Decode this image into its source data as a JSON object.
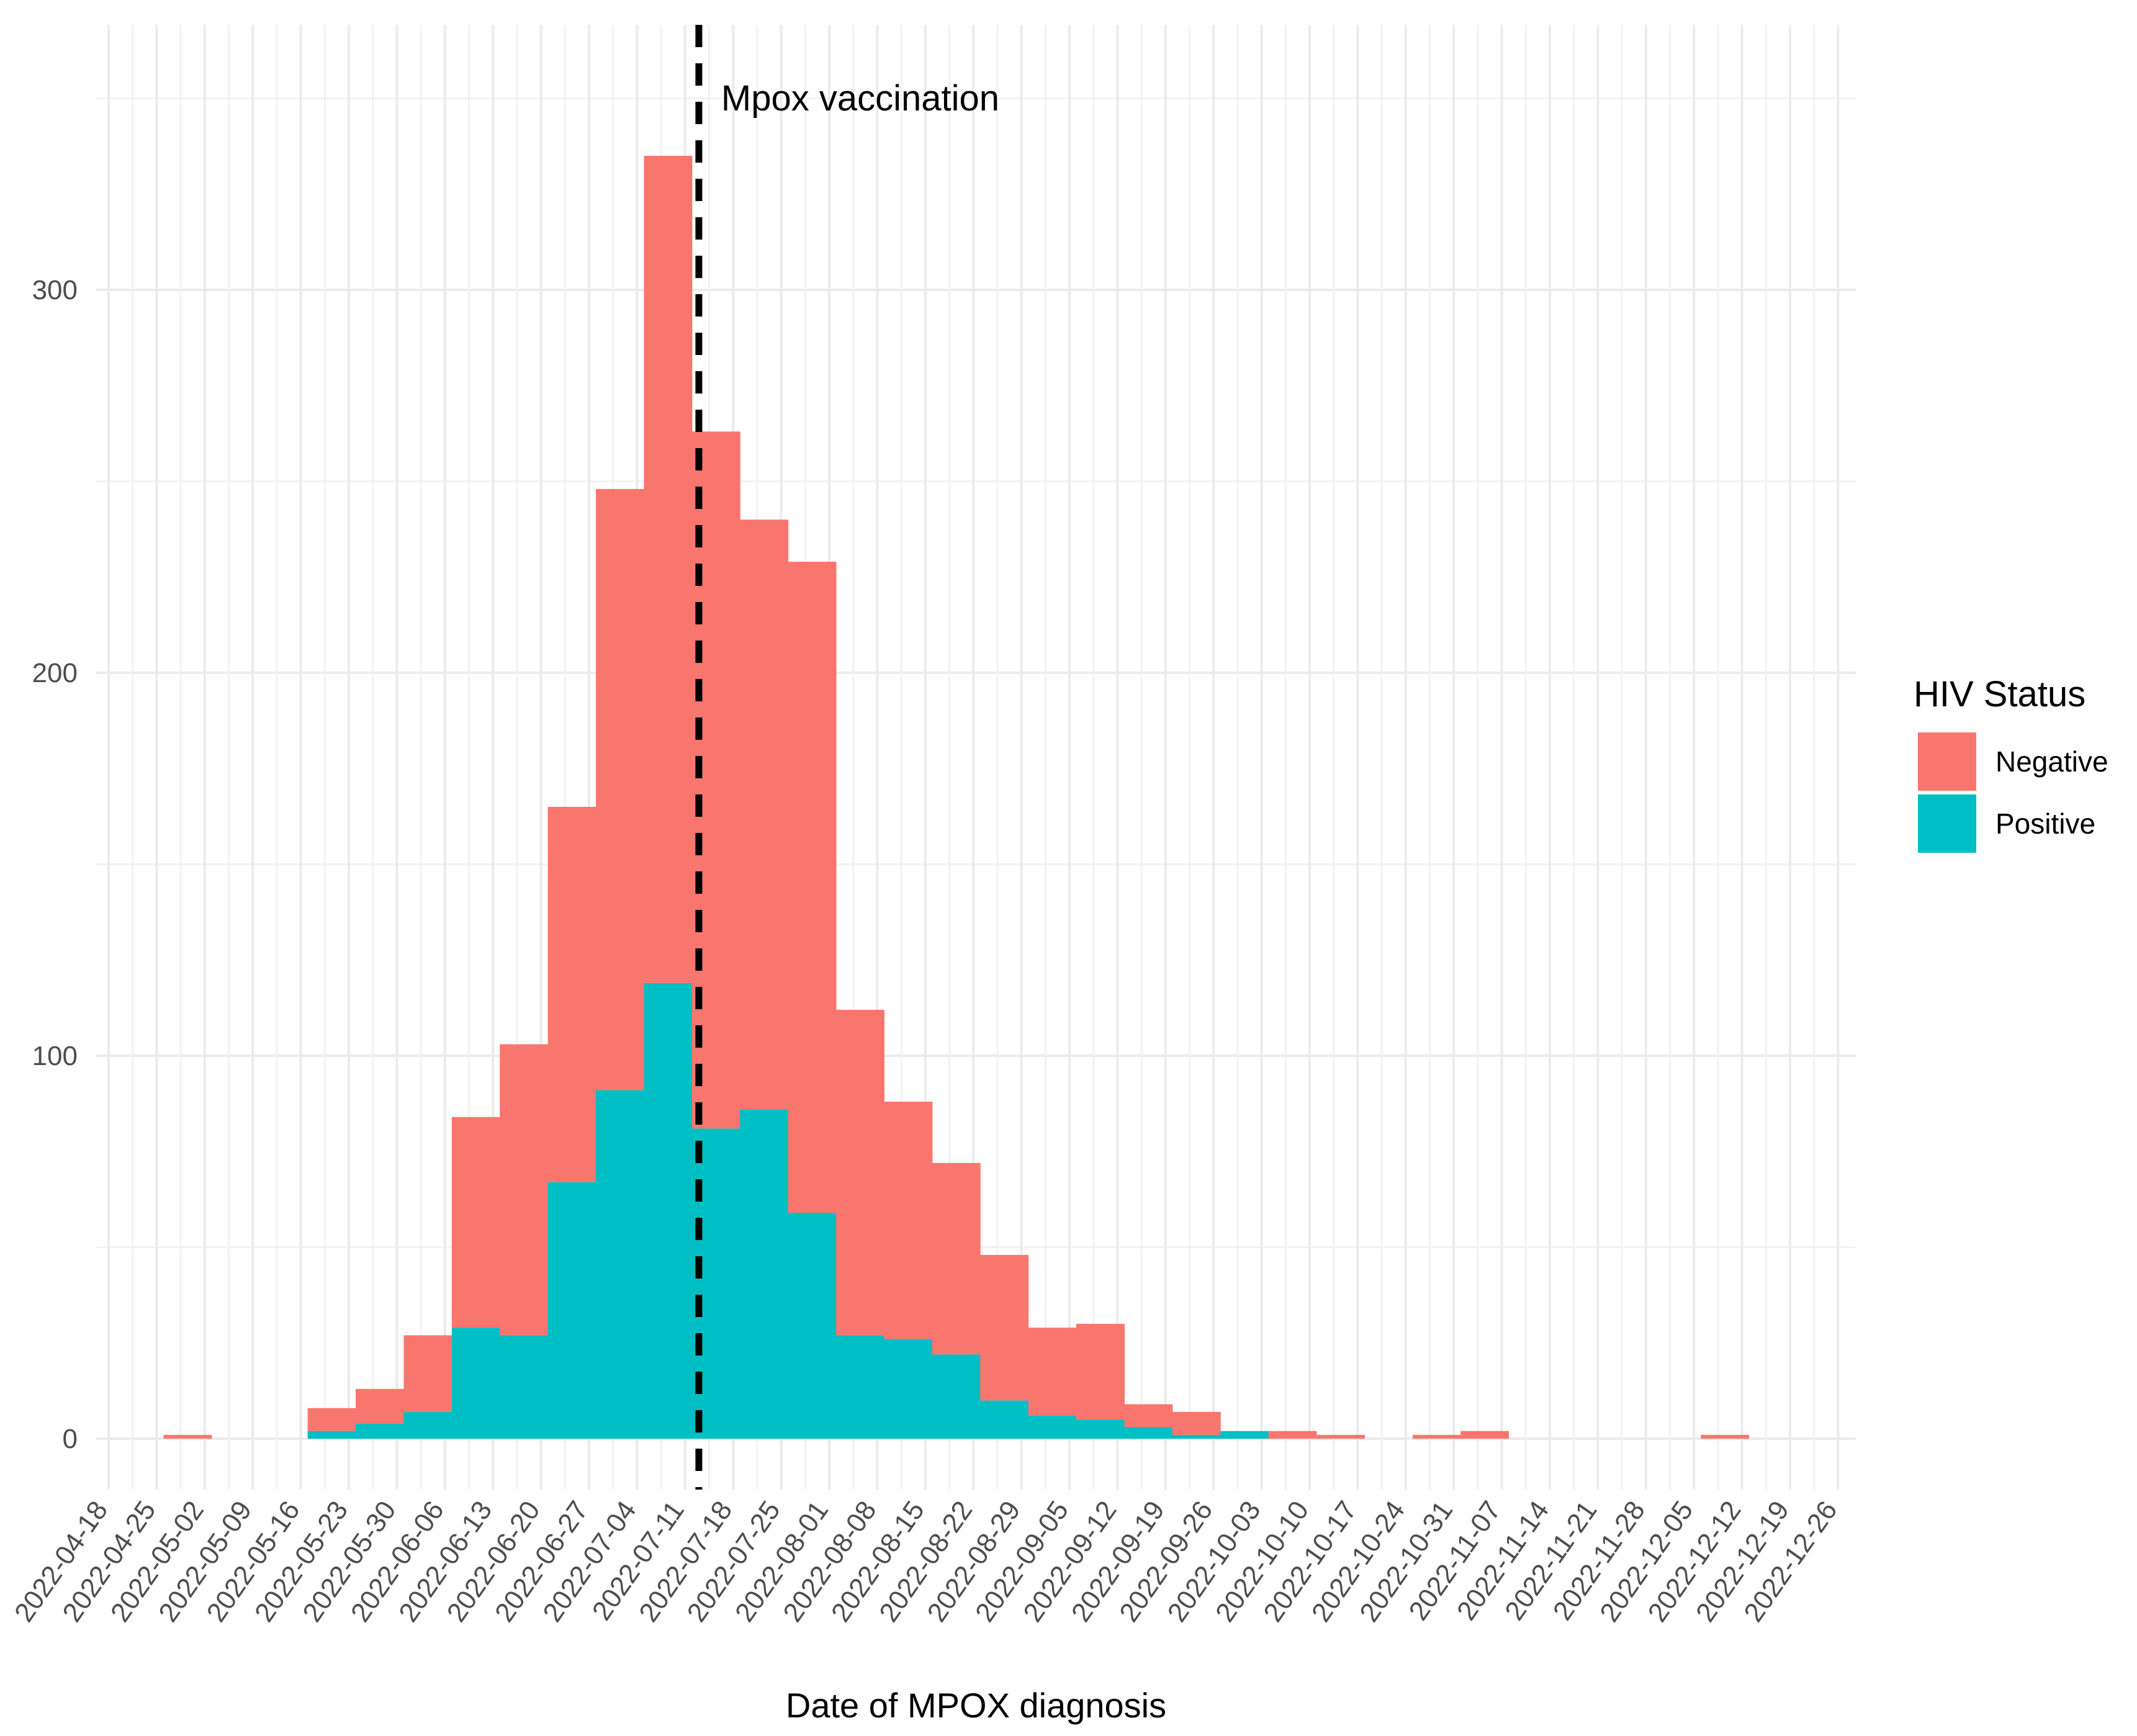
{
  "chart_data": {
    "type": "bar",
    "stacked": true,
    "xlabel": "Date of MPOX diagnosis",
    "ylabel": "",
    "ylim": [
      -17,
      370
    ],
    "yticks": [
      0,
      100,
      200,
      300
    ],
    "categories": [
      "2022-04-18",
      "2022-04-25",
      "2022-05-02",
      "2022-05-09",
      "2022-05-16",
      "2022-05-23",
      "2022-05-30",
      "2022-06-06",
      "2022-06-13",
      "2022-06-20",
      "2022-06-27",
      "2022-07-04",
      "2022-07-11",
      "2022-07-18",
      "2022-07-25",
      "2022-08-01",
      "2022-08-08",
      "2022-08-15",
      "2022-08-22",
      "2022-08-29",
      "2022-09-05",
      "2022-09-12",
      "2022-09-19",
      "2022-09-26",
      "2022-10-03",
      "2022-10-10",
      "2022-10-17",
      "2022-10-24",
      "2022-10-31",
      "2022-11-07",
      "2022-11-14",
      "2022-11-21",
      "2022-11-28",
      "2022-12-05",
      "2022-12-12",
      "2022-12-19",
      "2022-12-26"
    ],
    "bins": [
      {
        "start": "2022-04-26",
        "positive": 0,
        "negative": 1
      },
      {
        "start": "2022-05-10",
        "positive": 0,
        "negative": 0
      },
      {
        "start": "2022-05-17",
        "positive": 2,
        "negative": 6
      },
      {
        "start": "2022-05-24",
        "positive": 4,
        "negative": 9
      },
      {
        "start": "2022-05-31",
        "positive": 7,
        "negative": 20
      },
      {
        "start": "2022-06-07",
        "positive": 29,
        "negative": 55
      },
      {
        "start": "2022-06-14",
        "positive": 27,
        "negative": 76
      },
      {
        "start": "2022-06-21",
        "positive": 67,
        "negative": 98
      },
      {
        "start": "2022-06-28",
        "positive": 91,
        "negative": 157
      },
      {
        "start": "2022-07-05",
        "positive": 119,
        "negative": 216
      },
      {
        "start": "2022-07-12",
        "positive": 81,
        "negative": 182
      },
      {
        "start": "2022-07-19",
        "positive": 86,
        "negative": 154
      },
      {
        "start": "2022-07-26",
        "positive": 59,
        "negative": 170
      },
      {
        "start": "2022-08-02",
        "positive": 27,
        "negative": 85
      },
      {
        "start": "2022-08-09",
        "positive": 26,
        "negative": 62
      },
      {
        "start": "2022-08-16",
        "positive": 22,
        "negative": 50
      },
      {
        "start": "2022-08-23",
        "positive": 10,
        "negative": 38
      },
      {
        "start": "2022-08-30",
        "positive": 6,
        "negative": 23
      },
      {
        "start": "2022-09-06",
        "positive": 5,
        "negative": 25
      },
      {
        "start": "2022-09-13",
        "positive": 3,
        "negative": 6
      },
      {
        "start": "2022-09-20",
        "positive": 1,
        "negative": 6
      },
      {
        "start": "2022-09-27",
        "positive": 2,
        "negative": 0
      },
      {
        "start": "2022-10-04",
        "positive": 0,
        "negative": 2
      },
      {
        "start": "2022-10-11",
        "positive": 0,
        "negative": 1
      },
      {
        "start": "2022-10-25",
        "positive": 0,
        "negative": 1
      },
      {
        "start": "2022-11-01",
        "positive": 0,
        "negative": 2
      },
      {
        "start": "2022-12-06",
        "positive": 0,
        "negative": 1
      }
    ],
    "series": [
      {
        "name": "Negative",
        "color": "#F8766D"
      },
      {
        "name": "Positive",
        "color": "#00BFC4"
      }
    ],
    "legend": {
      "title": "HIV Status",
      "position": "right"
    },
    "annotation": {
      "label": "Mpox vaccination",
      "date": "2022-07-13",
      "style": "dashed-vertical-line"
    },
    "grid": true
  }
}
